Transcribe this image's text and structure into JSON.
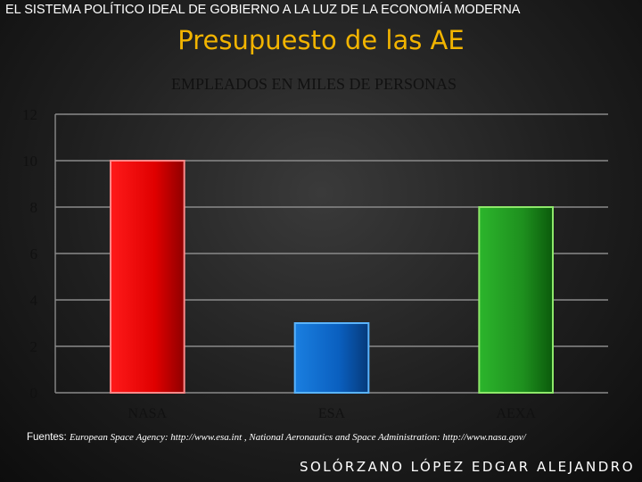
{
  "header": {
    "text": "EL SISTEMA POLÍTICO IDEAL DE GOBIERNO A LA LUZ DE LA ECONOMÍA MODERNA"
  },
  "slide": {
    "title": "Presupuesto de las AE"
  },
  "chart_data": {
    "type": "bar",
    "title": "EMPLEADOS EN MILES DE PERSONAS",
    "categories": [
      "NASA",
      "ESA",
      "AEXA"
    ],
    "values": [
      10,
      3,
      8
    ],
    "colors": [
      "#e00000",
      "#0066cc",
      "#1e8f1e"
    ],
    "ylim": [
      0,
      12
    ],
    "yticks": [
      "0",
      "2",
      "4",
      "6",
      "8",
      "10",
      "12"
    ],
    "grid": true,
    "legend": "none",
    "xlabel": "",
    "ylabel": ""
  },
  "footer": {
    "sources_label": "Fuentes:",
    "sources_text": "European Space Agency: http://www.esa.int , National Aeronautics and Space Administration: http://www.nasa.gov/",
    "author": "SOLÓRZANO LÓPEZ EDGAR ALEJANDRO"
  }
}
